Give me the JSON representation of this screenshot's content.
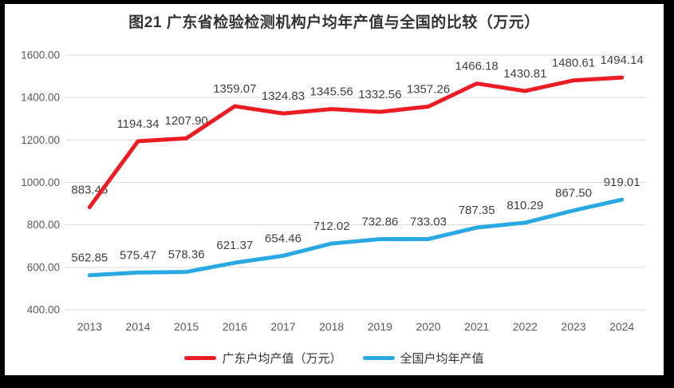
{
  "chart": {
    "title": "图21  广东省检验检测机构户均年产值与全国的比较（万元）"
  },
  "chart_data": {
    "type": "line",
    "title": "图21  广东省检验检测机构户均年产值与全国的比较（万元）",
    "categories": [
      "2013",
      "2014",
      "2015",
      "2016",
      "2017",
      "2018",
      "2019",
      "2020",
      "2021",
      "2022",
      "2023",
      "2024"
    ],
    "series": [
      {
        "name": "广东户均产值（万元）",
        "color": "#ec1c24",
        "values": [
          883.45,
          1194.34,
          1207.9,
          1359.07,
          1324.83,
          1345.56,
          1332.56,
          1357.26,
          1466.18,
          1430.81,
          1480.61,
          1494.14
        ]
      },
      {
        "name": "全国户均年产值",
        "color": "#29a9e1",
        "values": [
          562.85,
          575.47,
          578.36,
          621.37,
          654.46,
          712.02,
          732.86,
          733.03,
          787.35,
          810.29,
          867.5,
          919.01
        ]
      }
    ],
    "ylim": [
      400,
      1600
    ],
    "y_tick_step": 200,
    "y_tick_labels": [
      "400.00",
      "600.00",
      "800.00",
      "1000.00",
      "1200.00",
      "1400.00",
      "1600.00"
    ],
    "grid": "horizontal-only",
    "legend_position": "bottom",
    "data_labels": "above-points",
    "colors": {
      "gridline": "#d9d9d9",
      "axis_label": "#595959",
      "data_label": "#404040",
      "title": "#333333",
      "plot_background": "#ffffff",
      "frame_border": "#000000"
    }
  }
}
